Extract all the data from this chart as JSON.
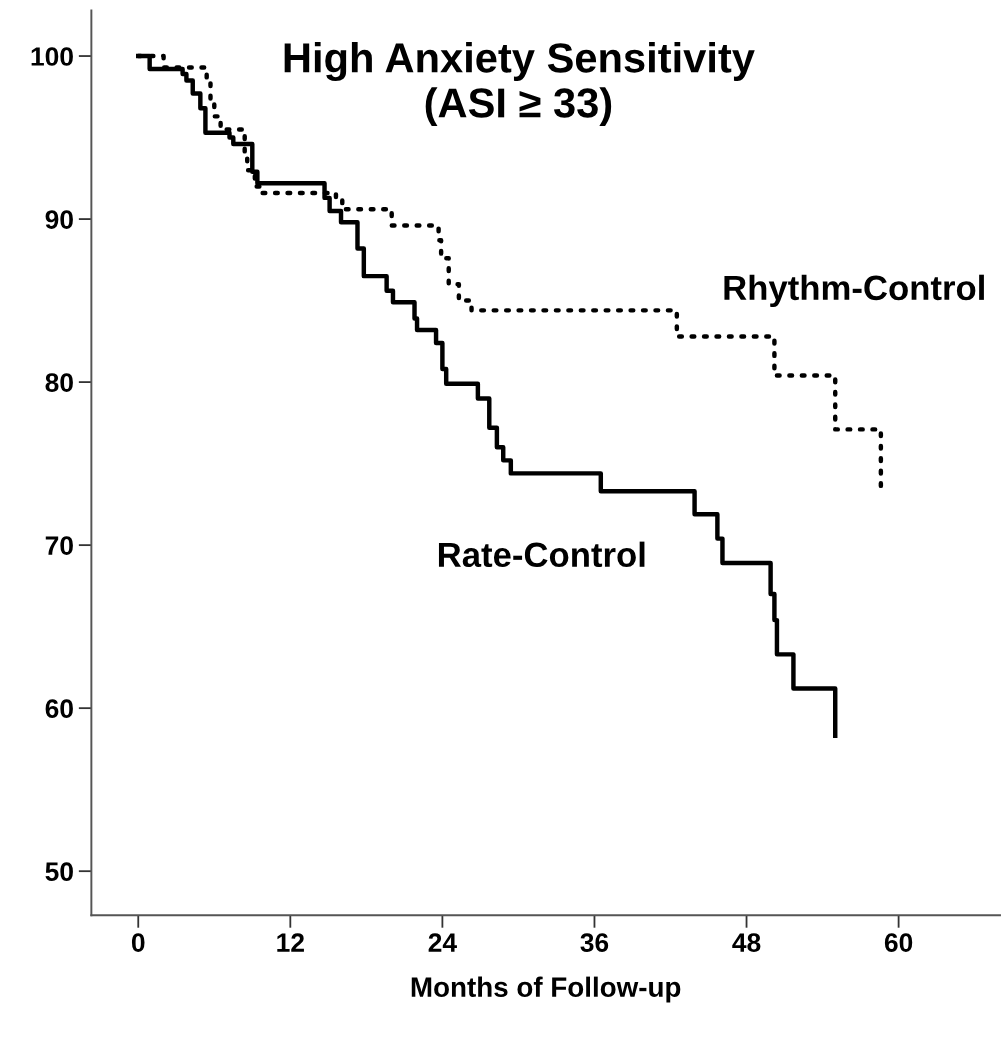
{
  "chart_data": {
    "type": "step",
    "title": "High Anxiety Sensitivity\n(ASI ≥ 33)",
    "xlabel": "Months of Follow-up",
    "xlim": [
      -3.7,
      68
    ],
    "xticks": [
      0,
      12,
      24,
      36,
      48,
      60
    ],
    "ylim": [
      47.3,
      102.8
    ],
    "yticks": [
      50,
      60,
      70,
      80,
      90,
      100
    ],
    "grid": false,
    "legend": false,
    "series": [
      {
        "name": "Rhythm-Control",
        "color": "#000000",
        "line_style": "dotted",
        "x": [
          0,
          2.0,
          5.4,
          5.7,
          6.0,
          6.5,
          8.4,
          8.6,
          9.2,
          9.6,
          15.6,
          16.1,
          20.0,
          23.7,
          23.9,
          24.5,
          25.3,
          26.3,
          42.5,
          50.2,
          55.0,
          58.6
        ],
        "values": [
          100,
          99.3,
          98.4,
          97.2,
          96.3,
          95.5,
          94.0,
          93.0,
          92.0,
          91.6,
          91.2,
          90.6,
          89.6,
          88.7,
          87.6,
          86.0,
          85.0,
          84.4,
          82.8,
          80.4,
          77.1,
          73.3
        ]
      },
      {
        "name": "Rate-Control",
        "color": "#000000",
        "line_style": "solid",
        "x": [
          0,
          0.9,
          3.5,
          3.8,
          4.3,
          4.9,
          5.3,
          7.2,
          7.5,
          9.0,
          9.4,
          14.7,
          15.1,
          16.0,
          17.3,
          17.8,
          19.6,
          20.1,
          21.8,
          22.0,
          23.5,
          24.0,
          24.3,
          26.8,
          27.7,
          28.3,
          28.8,
          29.4,
          36.5,
          43.9,
          45.7,
          46.1,
          49.9,
          50.2,
          50.4,
          51.7,
          55.0
        ],
        "values": [
          100,
          99.2,
          98.9,
          98.5,
          97.7,
          96.8,
          95.3,
          95.0,
          94.6,
          92.9,
          92.2,
          91.3,
          90.5,
          89.8,
          88.2,
          86.5,
          85.6,
          84.9,
          83.9,
          83.2,
          82.4,
          80.8,
          79.9,
          79.0,
          77.2,
          76.0,
          75.2,
          74.4,
          73.3,
          71.9,
          70.4,
          68.9,
          67.0,
          65.4,
          63.3,
          61.2,
          58.3
        ]
      }
    ]
  }
}
